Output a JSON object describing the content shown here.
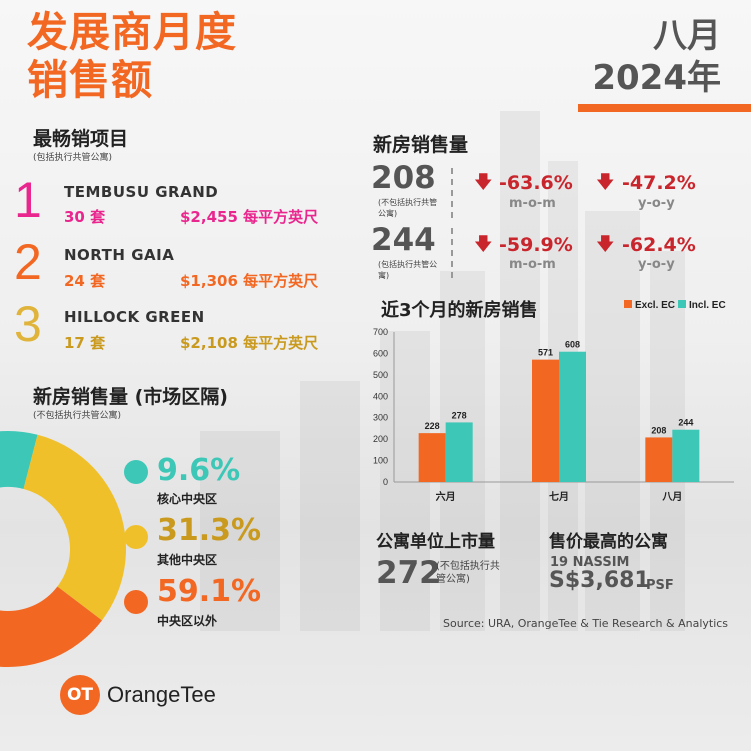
{
  "header": {
    "title_line1": "发展商月度",
    "title_line2": "销售额",
    "month": "八月",
    "year": "2024年"
  },
  "colors": {
    "orange": "#f26722",
    "teal": "#3cc7b7",
    "yellow": "#f0c02b",
    "magenta": "#e9268e",
    "red_down": "#c9252c"
  },
  "top_projects": {
    "title": "最畅销项目",
    "note": "(包括执行共管公寓)",
    "items": [
      {
        "rank": "1",
        "name": "TEMBUSU GRAND",
        "units": "30 套",
        "price": "$2,455 每平方英尺",
        "color": "#e9268e"
      },
      {
        "rank": "2",
        "name": "NORTH GAIA",
        "units": "24 套",
        "price": "$1,306 每平方英尺",
        "color": "#f26722"
      },
      {
        "rank": "3",
        "name": "HILLOCK GREEN",
        "units": "17 套",
        "price": "$2,108 每平方英尺",
        "color": "#c99a1e"
      }
    ]
  },
  "new_sales": {
    "title": "新房销售量",
    "rows": [
      {
        "value": "208",
        "note": "(不包括执行共管公寓)",
        "mom": "-63.6%",
        "mom_label": "m-o-m",
        "yoy": "-47.2%",
        "yoy_label": "y-o-y"
      },
      {
        "value": "244",
        "note": "(包括执行共管公寓)",
        "mom": "-59.9%",
        "mom_label": "m-o-m",
        "yoy": "-62.4%",
        "yoy_label": "y-o-y"
      }
    ],
    "arrow_icon": "down-arrow-icon"
  },
  "region_sales": {
    "title": "新房销售量 (市场区隔)",
    "note": "(不包括执行共管公寓)",
    "segments": [
      {
        "pct": "9.6%",
        "label": "核心中央区",
        "value": 9.6,
        "color": "#3cc7b7"
      },
      {
        "pct": "31.3%",
        "label": "其他中央区",
        "value": 31.3,
        "color": "#f0c02b"
      },
      {
        "pct": "59.1%",
        "label": "中央区以外",
        "value": 59.1,
        "color": "#f26722"
      }
    ]
  },
  "chart_data": {
    "type": "bar",
    "title": "近3个月的新房销售",
    "categories": [
      "六月",
      "七月",
      "八月"
    ],
    "series": [
      {
        "name": "Excl. EC",
        "values": [
          228,
          571,
          208
        ],
        "color": "#f26722"
      },
      {
        "name": "Incl. EC",
        "values": [
          278,
          608,
          244
        ],
        "color": "#3cc7b7"
      }
    ],
    "ylim": [
      0,
      700
    ],
    "yticks": [
      0,
      100,
      200,
      300,
      400,
      500,
      600,
      700
    ],
    "legend": "top-right",
    "grid": false
  },
  "launched_units": {
    "title": "公寓单位上市量",
    "value": "272",
    "note": "(不包括执行共管公寓)"
  },
  "top_price": {
    "title": "售价最高的公寓",
    "project": "19 NASSIM",
    "price": "S$3,681",
    "unit": "PSF"
  },
  "source": "Source: URA, OrangeTee & Tie Research & Analytics",
  "logo": {
    "mark": "OT",
    "name": "OrangeTee"
  }
}
